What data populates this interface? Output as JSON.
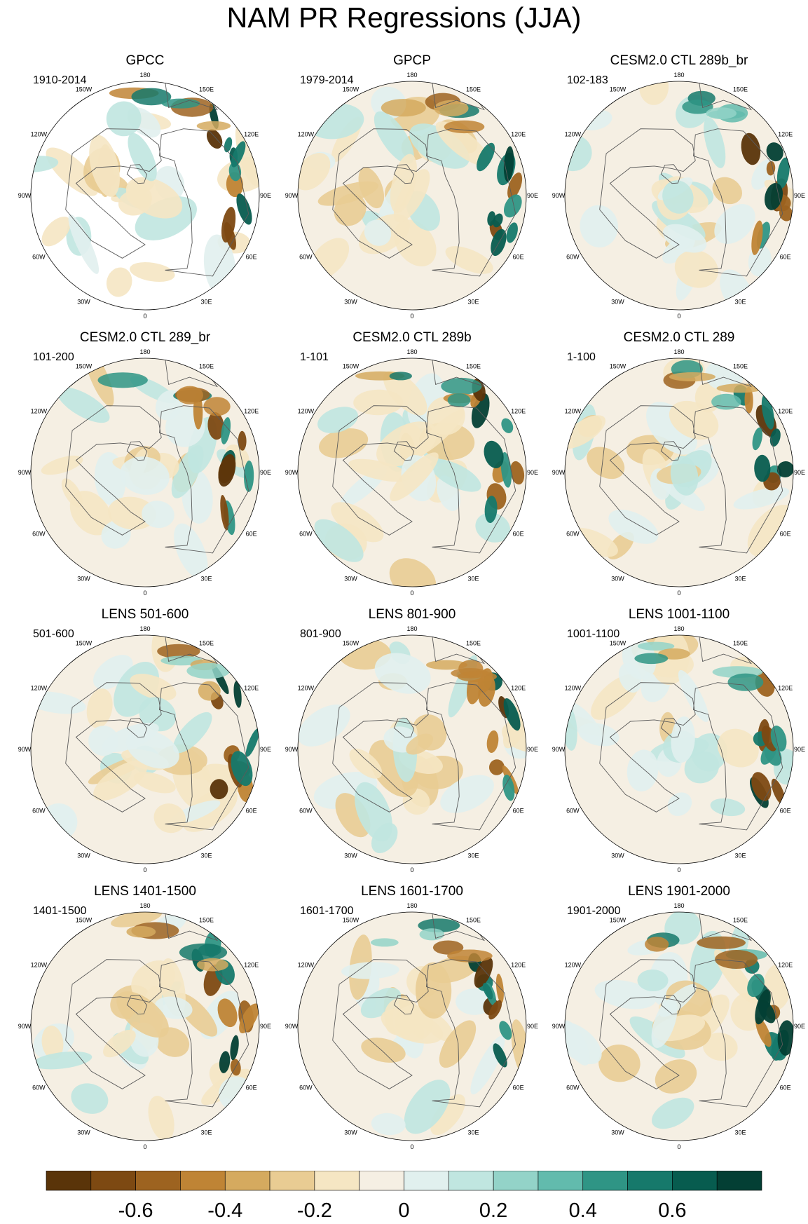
{
  "title": "NAM PR Regressions (JJA)",
  "chart_data": {
    "type": "heatmap",
    "projection": "north polar stereographic",
    "longitude_labels": [
      "180",
      "150E",
      "120E",
      "90E",
      "60E",
      "30E",
      "0",
      "30W",
      "60W",
      "90W",
      "120W",
      "150W"
    ],
    "panels": [
      {
        "title": "GPCC",
        "period": "1910-2014"
      },
      {
        "title": "GPCP",
        "period": "1979-2014"
      },
      {
        "title": "CESM2.0 CTL 289b_br",
        "period": "102-183"
      },
      {
        "title": "CESM2.0 CTL 289_br",
        "period": "101-200"
      },
      {
        "title": "CESM2.0 CTL 289b",
        "period": "1-101"
      },
      {
        "title": "CESM2.0 CTL 289",
        "period": "1-100"
      },
      {
        "title": "LENS 501-600",
        "period": "501-600"
      },
      {
        "title": "LENS 801-900",
        "period": "801-900"
      },
      {
        "title": "LENS 1001-1100",
        "period": "1001-1100"
      },
      {
        "title": "LENS 1401-1500",
        "period": "1401-1500"
      },
      {
        "title": "LENS 1601-1700",
        "period": "1601-1700"
      },
      {
        "title": "LENS 1901-2000",
        "period": "1901-2000"
      }
    ],
    "colorbar": {
      "labels": [
        "-0.6",
        "-0.4",
        "-0.2",
        "0",
        "0.2",
        "0.4",
        "0.6"
      ],
      "label_values": [
        -0.6,
        -0.4,
        -0.2,
        0,
        0.2,
        0.4,
        0.6
      ],
      "range": [
        -0.8,
        0.8
      ],
      "interval": 0.1,
      "colors": [
        "#5a3409",
        "#7d4912",
        "#9d6320",
        "#bf8435",
        "#d5aa5f",
        "#e9cc93",
        "#f5e6c3",
        "#f5efe3",
        "#e1f0ee",
        "#c0e6e0",
        "#93d3c8",
        "#62bbad",
        "#2f9585",
        "#16796b",
        "#075c4f",
        "#033f34"
      ]
    }
  }
}
